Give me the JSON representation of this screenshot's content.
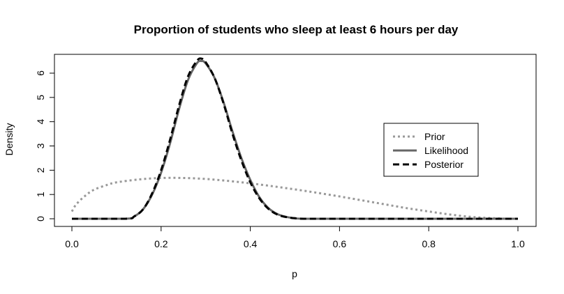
{
  "chart_data": {
    "type": "line",
    "title": "Proportion of students who sleep at least 6 hours per day",
    "xlabel": "p",
    "ylabel": "Density",
    "xlim": [
      0,
      1
    ],
    "ylim": [
      0,
      6.6
    ],
    "xticks": [
      "0.0",
      "0.2",
      "0.4",
      "0.6",
      "0.8",
      "1.0"
    ],
    "xtick_values": [
      0,
      0.2,
      0.4,
      0.6,
      0.8,
      1.0
    ],
    "yticks": [
      "0",
      "1",
      "2",
      "3",
      "4",
      "5",
      "6"
    ],
    "ytick_values": [
      0,
      1,
      2,
      3,
      4,
      5,
      6
    ],
    "grid": false,
    "legend_position": "right",
    "series": [
      {
        "name": "Prior",
        "style": "dotted",
        "color": "#999999",
        "x": [
          0,
          0.01,
          0.03,
          0.05,
          0.08,
          0.1,
          0.15,
          0.2,
          0.25,
          0.3,
          0.35,
          0.4,
          0.45,
          0.5,
          0.55,
          0.6,
          0.65,
          0.7,
          0.75,
          0.8,
          0.85,
          0.9,
          0.95,
          0.98,
          1.0
        ],
        "y": [
          0.3,
          0.6,
          0.95,
          1.2,
          1.4,
          1.5,
          1.62,
          1.68,
          1.68,
          1.64,
          1.56,
          1.46,
          1.34,
          1.21,
          1.07,
          0.92,
          0.76,
          0.6,
          0.44,
          0.3,
          0.17,
          0.07,
          0.02,
          0.0,
          0.0
        ]
      },
      {
        "name": "Likelihood",
        "style": "solid",
        "color": "#666666",
        "x": [
          0,
          0.12,
          0.14,
          0.16,
          0.18,
          0.2,
          0.22,
          0.24,
          0.26,
          0.28,
          0.29,
          0.3,
          0.32,
          0.34,
          0.36,
          0.38,
          0.4,
          0.42,
          0.44,
          0.46,
          0.48,
          0.5,
          0.52,
          0.6,
          0.8,
          1.0
        ],
        "y": [
          0,
          0,
          0.1,
          0.4,
          1.0,
          1.9,
          3.1,
          4.5,
          5.7,
          6.4,
          6.5,
          6.4,
          5.8,
          4.8,
          3.6,
          2.5,
          1.6,
          0.9,
          0.45,
          0.2,
          0.08,
          0.02,
          0.0,
          0,
          0,
          0
        ]
      },
      {
        "name": "Posterior",
        "style": "dashed",
        "color": "#000000",
        "x": [
          0,
          0.12,
          0.14,
          0.16,
          0.18,
          0.2,
          0.22,
          0.24,
          0.26,
          0.28,
          0.29,
          0.3,
          0.32,
          0.34,
          0.36,
          0.38,
          0.4,
          0.42,
          0.44,
          0.46,
          0.48,
          0.5,
          0.52,
          0.6,
          0.8,
          1.0
        ],
        "y": [
          0,
          0,
          0.1,
          0.4,
          1.05,
          2.0,
          3.25,
          4.65,
          5.85,
          6.5,
          6.6,
          6.45,
          5.8,
          4.75,
          3.5,
          2.4,
          1.5,
          0.85,
          0.42,
          0.18,
          0.07,
          0.02,
          0.0,
          0,
          0,
          0
        ]
      }
    ]
  }
}
